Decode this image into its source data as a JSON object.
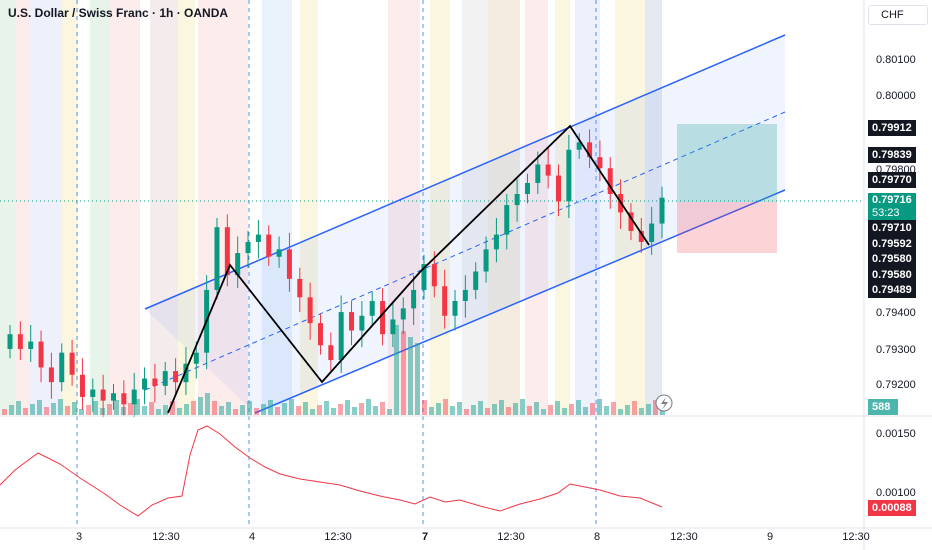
{
  "header": {
    "title": "U.S. Dollar / Swiss Franc · 1h · OANDA",
    "currency_button": "CHF"
  },
  "price_axis": {
    "ticks": [
      "0.80100",
      "0.80000",
      "0.79800",
      "0.79400",
      "0.79300",
      "0.79200"
    ]
  },
  "price_tags": [
    {
      "label": "0.79912",
      "style": "dark"
    },
    {
      "label": "0.79839",
      "style": "dark"
    },
    {
      "label": "0.79770",
      "style": "dark"
    },
    {
      "label": "0.79710",
      "style": "dark"
    },
    {
      "label": "0.79592",
      "style": "dark"
    },
    {
      "label": "0.79580",
      "style": "dark"
    },
    {
      "label": "0.79580",
      "style": "dark"
    },
    {
      "label": "0.79489",
      "style": "dark"
    }
  ],
  "current_price": {
    "value": "0.79716",
    "countdown": "53:23",
    "color": "#089981"
  },
  "volume_tag": {
    "value": "588",
    "color": "#4db6ac"
  },
  "indicator_axis": {
    "ticks": [
      "0.00150",
      "0.00100"
    ],
    "current": "0.00088",
    "current_color": "#f23645"
  },
  "time_axis": [
    {
      "label": "3",
      "bold": false
    },
    {
      "label": "12:30",
      "bold": false
    },
    {
      "label": "4",
      "bold": false
    },
    {
      "label": "12:30",
      "bold": false
    },
    {
      "label": "7",
      "bold": true
    },
    {
      "label": "12:30",
      "bold": false
    },
    {
      "label": "8",
      "bold": false
    },
    {
      "label": "12:30",
      "bold": false
    },
    {
      "label": "9",
      "bold": false
    },
    {
      "label": "12:30",
      "bold": false
    }
  ],
  "colors": {
    "up": "#089981",
    "down": "#f23645",
    "channel": "#2962ff",
    "pattern": "#000000",
    "indicator": "#f23645"
  },
  "chart_data": {
    "type": "candlestick",
    "symbol": "USDCHF",
    "interval": "1h",
    "price_range": [
      0.7915,
      0.8018
    ],
    "candles_close": [
      0.7935,
      0.7931,
      0.7933,
      0.7926,
      0.7922,
      0.793,
      0.7924,
      0.7918,
      0.792,
      0.7917,
      0.7919,
      0.7916,
      0.792,
      0.7923,
      0.7921,
      0.7925,
      0.7922,
      0.7927,
      0.793,
      0.7947,
      0.7964,
      0.7951,
      0.7957,
      0.796,
      0.7962,
      0.7956,
      0.7958,
      0.795,
      0.7945,
      0.7938,
      0.7932,
      0.7928,
      0.7941,
      0.7936,
      0.794,
      0.7944,
      0.7935,
      0.7939,
      0.7942,
      0.7947,
      0.7954,
      0.7948,
      0.794,
      0.7944,
      0.7947,
      0.7952,
      0.7958,
      0.7962,
      0.797,
      0.7973,
      0.7976,
      0.7981,
      0.7978,
      0.7971,
      0.7985,
      0.7987,
      0.7983,
      0.798,
      0.7973,
      0.7968,
      0.7963,
      0.796,
      0.7965,
      0.7972
    ]
  }
}
